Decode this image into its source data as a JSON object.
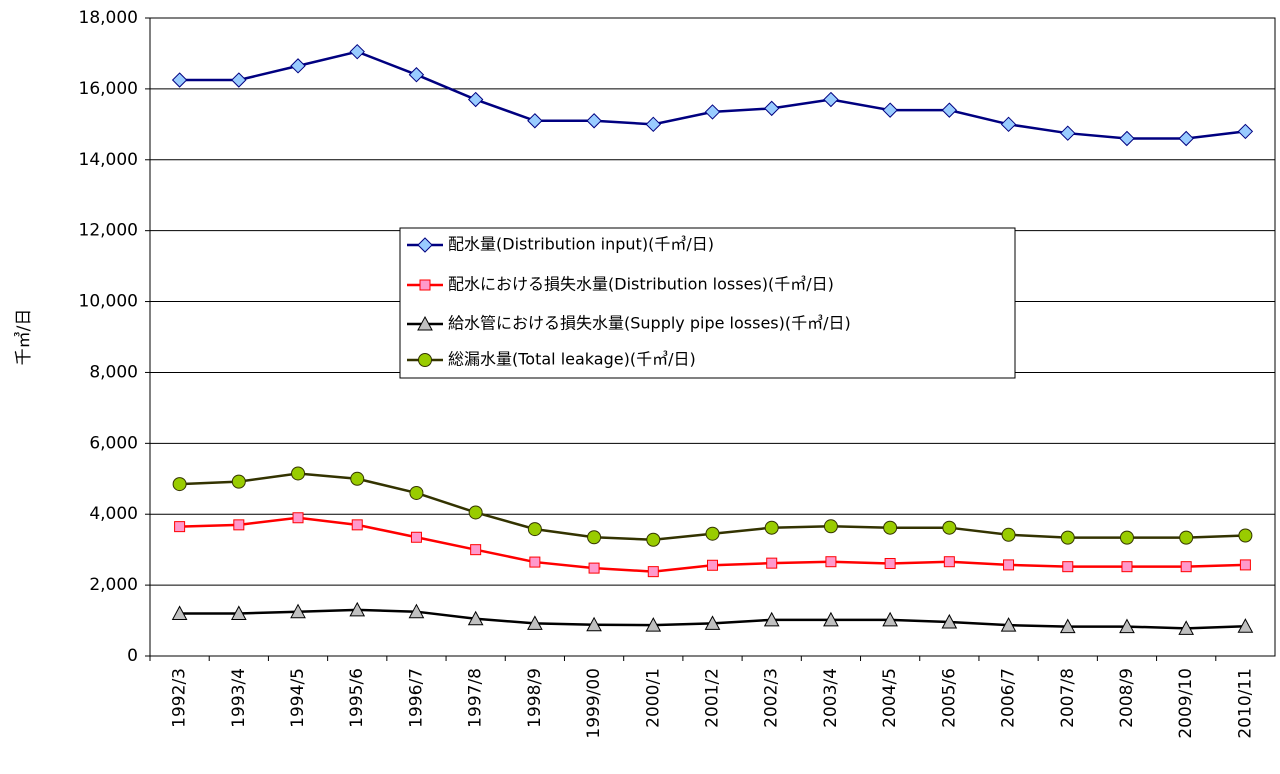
{
  "chart_data": {
    "type": "line",
    "y_label": "千㎥/日",
    "categories": [
      "1992/3",
      "1993/4",
      "1994/5",
      "1995/6",
      "1996/7",
      "1997/8",
      "1998/9",
      "1999/00",
      "2000/1",
      "2001/2",
      "2002/3",
      "2003/4",
      "2004/5",
      "2005/6",
      "2006/7",
      "2007/8",
      "2008/9",
      "2009/10",
      "2010/11"
    ],
    "series": [
      {
        "name": "配水量(Distribution input)(千㎥/日)",
        "color": "#000080",
        "marker": "diamond",
        "marker_fill": "#99ccff",
        "values": [
          16250,
          16250,
          16650,
          17050,
          16400,
          15700,
          15100,
          15100,
          15000,
          15350,
          15450,
          15700,
          15400,
          15400,
          15000,
          14750,
          14600,
          14600,
          14800
        ]
      },
      {
        "name": "配水における損失水量(Distribution losses)(千㎥/日)",
        "color": "#ff0000",
        "marker": "square",
        "marker_fill": "#ff99cc",
        "values": [
          3650,
          3700,
          3900,
          3700,
          3350,
          3000,
          2650,
          2480,
          2380,
          2560,
          2620,
          2660,
          2610,
          2660,
          2570,
          2520,
          2520,
          2520,
          2570
        ]
      },
      {
        "name": "給水管における損失水量(Supply pipe losses)(千㎥/日)",
        "color": "#000000",
        "marker": "triangle",
        "marker_fill": "#c0c0c0",
        "values": [
          1200,
          1200,
          1250,
          1300,
          1250,
          1050,
          920,
          880,
          870,
          920,
          1020,
          1020,
          1020,
          960,
          870,
          830,
          830,
          780,
          840
        ]
      },
      {
        "name": "総漏水量(Total leakage)(千㎥/日)",
        "color": "#333300",
        "marker": "circle",
        "marker_fill": "#99cc00",
        "values": [
          4850,
          4920,
          5150,
          5000,
          4600,
          4050,
          3580,
          3350,
          3280,
          3450,
          3620,
          3660,
          3620,
          3620,
          3420,
          3340,
          3340,
          3340,
          3400
        ]
      }
    ],
    "ylim": [
      0,
      18000
    ],
    "yticks": [
      0,
      {
        "value": 2000,
        "label": "2,000"
      },
      {
        "value": 4000,
        "label": "4,000"
      },
      {
        "value": 6000,
        "label": "6,000"
      },
      {
        "value": 8000,
        "label": "8,000"
      },
      {
        "value": 10000,
        "label": "10,000"
      },
      {
        "value": 12000,
        "label": "12,000"
      },
      {
        "value": 14000,
        "label": "14,000"
      },
      {
        "value": 16000,
        "label": "16,000"
      },
      {
        "value": 18000,
        "label": "18,000"
      }
    ],
    "grid": true
  }
}
